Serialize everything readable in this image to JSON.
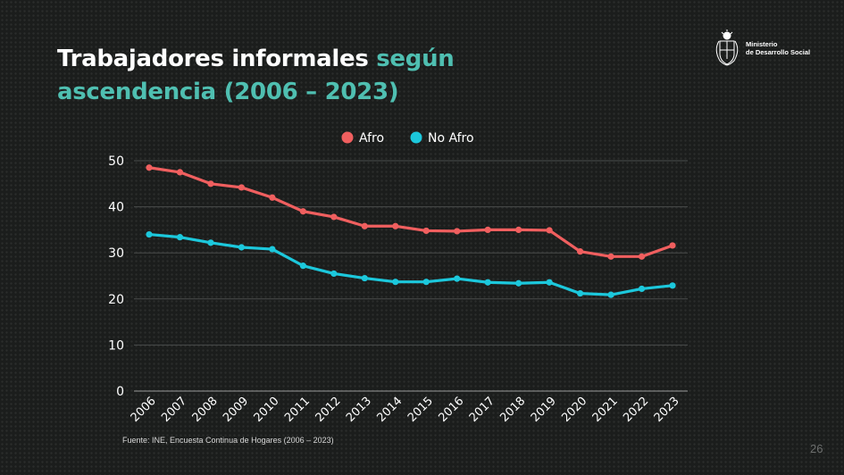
{
  "title": {
    "part1": "Trabajadores informales ",
    "part2": "según",
    "part3": "ascendencia (2006 – 2023)"
  },
  "logo": {
    "line1": "Ministerio",
    "line2": "de Desarrollo Social"
  },
  "source": "Fuente: INE, Encuesta Continua de Hogares (2006 – 2023)",
  "page_number": "26",
  "colors": {
    "afro": "#f05f5f",
    "no_afro": "#1cc8dc",
    "title_accent": "#4fbfb1",
    "background": "#1b1d1c"
  },
  "chart_data": {
    "type": "line",
    "title": "",
    "xlabel": "",
    "ylabel": "",
    "categories": [
      "2006",
      "2007",
      "2008",
      "2009",
      "2010",
      "2011",
      "2012",
      "2013",
      "2014",
      "2015",
      "2016",
      "2017",
      "2018",
      "2019",
      "2020",
      "2021",
      "2022",
      "2023"
    ],
    "yticks": [
      "0",
      "10",
      "20",
      "30",
      "40",
      "50"
    ],
    "ylim": [
      0,
      50
    ],
    "grid": true,
    "legend_position": "top",
    "series": [
      {
        "name": "Afro",
        "color": "#f05f5f",
        "values": [
          48.5,
          47.5,
          45,
          44.2,
          42,
          39,
          37.8,
          35.8,
          35.8,
          34.8,
          34.7,
          35,
          35,
          34.9,
          30.3,
          29.2,
          29.2,
          31.6
        ]
      },
      {
        "name": "No Afro",
        "color": "#1cc8dc",
        "values": [
          34,
          33.4,
          32.2,
          31.2,
          30.8,
          27.2,
          25.5,
          24.5,
          23.7,
          23.7,
          24.4,
          23.6,
          23.4,
          23.6,
          21.2,
          20.9,
          22.2,
          22.9
        ]
      }
    ]
  }
}
